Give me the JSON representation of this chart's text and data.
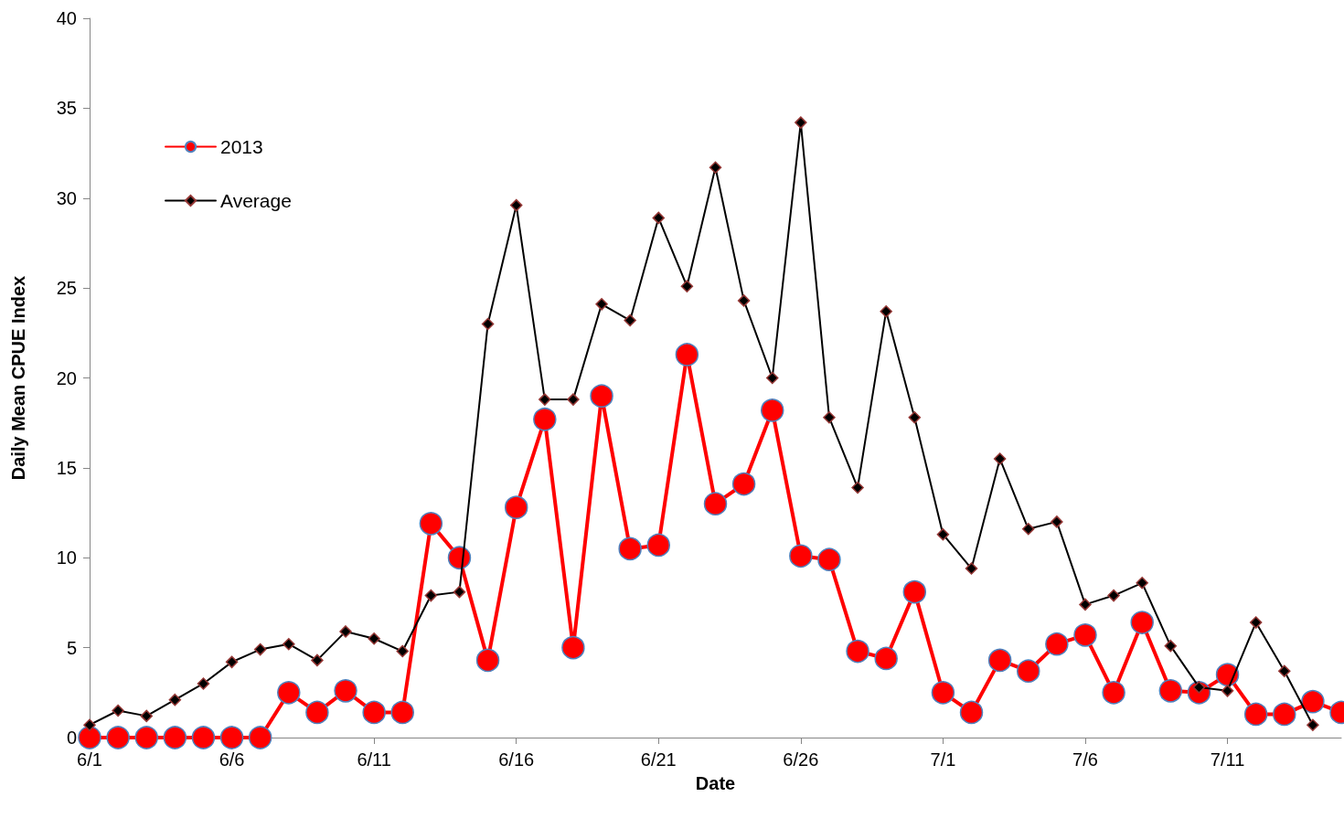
{
  "chart_data": {
    "type": "line",
    "xlabel": "Date",
    "ylabel": "Daily Mean CPUE Index",
    "categories": [
      "6/1",
      null,
      null,
      null,
      null,
      "6/6",
      null,
      null,
      null,
      null,
      "6/11",
      null,
      null,
      null,
      null,
      "6/16",
      null,
      null,
      null,
      null,
      "6/21",
      null,
      null,
      null,
      null,
      "6/26",
      null,
      null,
      null,
      null,
      "7/1",
      null,
      null,
      null,
      null,
      "7/6",
      null,
      null,
      null,
      null,
      "7/11",
      null,
      null,
      null,
      null
    ],
    "series": [
      {
        "name": "2013",
        "color": "#ff0000",
        "marker": "circle",
        "values": [
          0,
          0,
          0,
          0,
          0,
          0,
          0,
          2.5,
          1.4,
          2.6,
          1.4,
          1.4,
          11.9,
          10.0,
          4.3,
          12.8,
          17.7,
          5.0,
          19.0,
          10.5,
          10.7,
          21.3,
          13.0,
          14.1,
          18.2,
          10.1,
          9.9,
          4.8,
          4.4,
          8.1,
          2.5,
          1.4,
          4.3,
          3.7,
          5.2,
          5.7,
          2.5,
          6.4,
          2.6,
          2.5,
          3.5,
          1.3,
          1.3,
          2.0,
          1.4
        ]
      },
      {
        "name": "Average",
        "color": "#000000",
        "marker": "diamond",
        "values": [
          0.7,
          1.5,
          1.2,
          2.1,
          3.0,
          4.2,
          4.9,
          5.2,
          4.3,
          5.9,
          5.5,
          4.8,
          7.9,
          8.1,
          23.0,
          29.6,
          18.8,
          18.8,
          24.1,
          23.2,
          28.9,
          25.1,
          31.7,
          24.3,
          20.0,
          34.2,
          17.8,
          13.9,
          23.7,
          17.8,
          11.3,
          9.4,
          15.5,
          11.6,
          12.0,
          7.4,
          7.9,
          8.6,
          5.1,
          2.8,
          2.6,
          6.4,
          3.7,
          0.7,
          null
        ]
      }
    ],
    "ylim": [
      0,
      40
    ],
    "yticks": [
      0,
      5,
      10,
      15,
      20,
      25,
      30,
      35,
      40
    ],
    "grid": false,
    "legend": "top left"
  }
}
